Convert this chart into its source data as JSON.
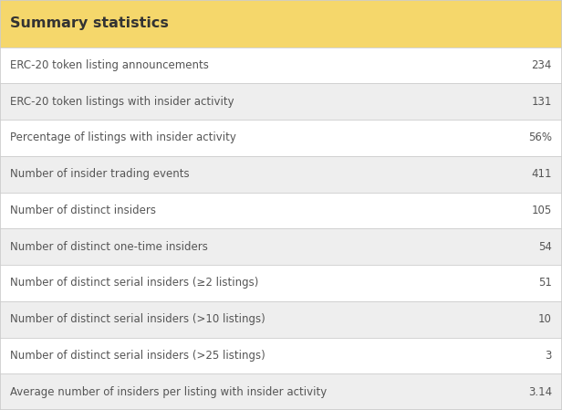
{
  "title": "Summary statistics",
  "title_bg": "#f5d76b",
  "title_color": "#333333",
  "title_fontsize": 11.5,
  "rows": [
    {
      "label": "ERC-20 token listing announcements",
      "value": "234",
      "bg": "#ffffff"
    },
    {
      "label": "ERC-20 token listings with insider activity",
      "value": "131",
      "bg": "#eeeeee"
    },
    {
      "label": "Percentage of listings with insider activity",
      "value": "56%",
      "bg": "#ffffff"
    },
    {
      "label": "Number of insider trading events",
      "value": "411",
      "bg": "#eeeeee"
    },
    {
      "label": "Number of distinct insiders",
      "value": "105",
      "bg": "#ffffff"
    },
    {
      "label": "Number of distinct one-time insiders",
      "value": "54",
      "bg": "#eeeeee"
    },
    {
      "label": "Number of distinct serial insiders (≥2 listings)",
      "value": "51",
      "bg": "#ffffff"
    },
    {
      "label": "Number of distinct serial insiders (>10 listings)",
      "value": "10",
      "bg": "#eeeeee"
    },
    {
      "label": "Number of distinct serial insiders (>25 listings)",
      "value": "3",
      "bg": "#ffffff"
    },
    {
      "label": "Average number of insiders per listing with insider activity",
      "value": "3.14",
      "bg": "#eeeeee"
    }
  ],
  "label_fontsize": 8.5,
  "value_fontsize": 8.5,
  "label_color": "#555555",
  "value_color": "#555555",
  "border_color": "#cccccc",
  "fig_bg": "#ffffff",
  "fig_width": 6.16,
  "fig_height": 4.49,
  "dpi": 100
}
